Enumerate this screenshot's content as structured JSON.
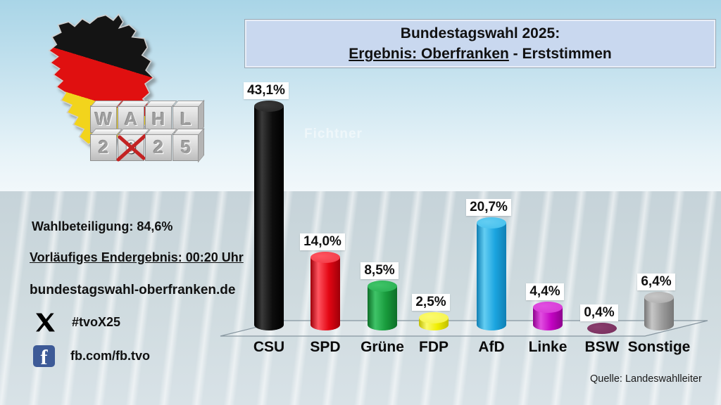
{
  "title": {
    "line1": "Bundestagswahl 2025:",
    "line2_underlined": "Ergebnis: Oberfranken",
    "line2_rest": " - Erststimmen"
  },
  "logo": {
    "row1": [
      "W",
      "A",
      "H",
      "L"
    ],
    "row2": [
      "2",
      "0",
      "2",
      "5"
    ]
  },
  "left_panel": {
    "turnout": "Wahlbeteiligung: 84,6%",
    "final_result": "Vorläufiges Endergebnis: 00:20 Uhr",
    "website": "bundestagswahl-oberfranken.de",
    "x_hashtag": "#tvoX25",
    "facebook_handle": "fb.com/fb.tvo"
  },
  "watermark": "Fichtner",
  "source": "Quelle: Landeswahlleiter",
  "accent_colors": {
    "title_box_fill": "#c9d8ef",
    "facebook_blue": "#3d5a97",
    "ballot_cross_red": "#c32222"
  },
  "chart_data": {
    "type": "bar",
    "title": "Bundestagswahl 2025: Ergebnis Oberfranken - Erststimmen",
    "categories": [
      "CSU",
      "SPD",
      "Grüne",
      "FDP",
      "AfD",
      "Linke",
      "BSW",
      "Sonstige"
    ],
    "values": [
      43.1,
      14.0,
      8.5,
      2.5,
      20.7,
      4.4,
      0.4,
      6.4
    ],
    "value_labels": [
      "43,1%",
      "14,0%",
      "8,5%",
      "2,5%",
      "20,7%",
      "4,4%",
      "0,4%",
      "6,4%"
    ],
    "value_suffix": "%",
    "ylim": [
      0,
      45
    ],
    "grid": false,
    "legend": false,
    "bar_style": "3d-cylinder",
    "colors": [
      {
        "main": "#0d0d0d",
        "light": "#3a3a3a",
        "dark": "#000000",
        "top": "#2b2b2b"
      },
      {
        "main": "#e30613",
        "light": "#ff5560",
        "dark": "#9e0009",
        "top": "#f4414d"
      },
      {
        "main": "#189b3c",
        "light": "#3fc468",
        "dark": "#0d6e28",
        "top": "#2eb457"
      },
      {
        "main": "#f0ee00",
        "light": "#fbfa6e",
        "dark": "#c0be00",
        "top": "#f6f551"
      },
      {
        "main": "#1ba5e0",
        "light": "#63cdf2",
        "dark": "#0f7fb4",
        "top": "#4cc3ee"
      },
      {
        "main": "#c303c3",
        "light": "#e14fe1",
        "dark": "#8d028d",
        "top": "#d83fd8"
      },
      {
        "main": "#64224d",
        "light": "#8a3f6e",
        "dark": "#471536",
        "top": "#7c3261"
      },
      {
        "main": "#9a9a9a",
        "light": "#c6c6c6",
        "dark": "#767676",
        "top": "#b3b3b3"
      }
    ]
  }
}
